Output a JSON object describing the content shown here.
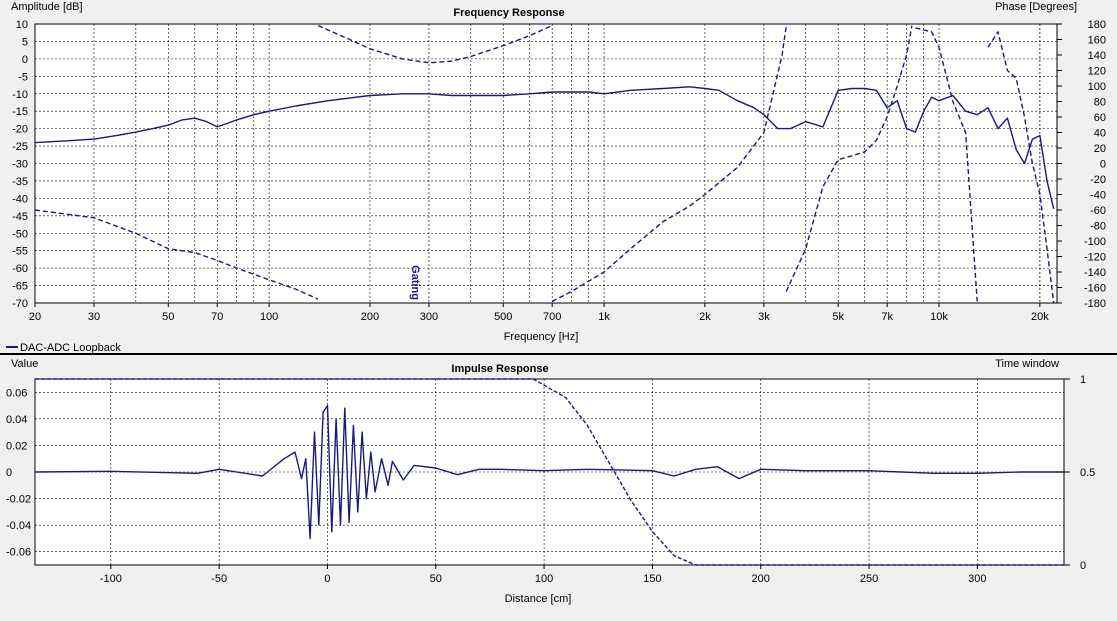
{
  "chart_data": [
    {
      "type": "line",
      "title": "Frequency Response",
      "xlabel": "Frequency [Hz]",
      "ylabel_left": "Amplitude [dB]",
      "ylabel_right": "Phase [Degrees]",
      "x_scale": "log",
      "xlim": [
        20,
        22500
      ],
      "ylim_left": [
        -70,
        10
      ],
      "ylim_right": [
        -180,
        180
      ],
      "x_ticks": [
        20,
        30,
        50,
        70,
        100,
        200,
        300,
        500,
        700,
        1000,
        2000,
        3000,
        5000,
        7000,
        10000,
        20000
      ],
      "x_tick_labels": [
        "20",
        "30",
        "50",
        "70",
        "100",
        "200",
        "300",
        "500",
        "700",
        "1k",
        "2k",
        "3k",
        "5k",
        "7k",
        "10k",
        "20k"
      ],
      "y_ticks_left": [
        10,
        5,
        0,
        -5,
        -10,
        -15,
        -20,
        -25,
        -30,
        -35,
        -40,
        -45,
        -50,
        -55,
        -60,
        -65,
        -70
      ],
      "y_ticks_right": [
        180,
        160,
        140,
        120,
        100,
        80,
        60,
        40,
        20,
        0,
        -20,
        -40,
        -60,
        -80,
        -100,
        -120,
        -140,
        -160,
        -180
      ],
      "grid": true,
      "annotation": "Gating",
      "annotation_freq": 260,
      "legend_entry": "DAC-ADC Loopback",
      "color": "#1a1a7a",
      "series": [
        {
          "name": "DAC-ADC Loopback",
          "axis": "left",
          "style": "solid",
          "x": [
            20,
            25,
            30,
            35,
            40,
            45,
            50,
            55,
            60,
            65,
            70,
            75,
            80,
            90,
            100,
            120,
            150,
            200,
            250,
            300,
            350,
            400,
            500,
            600,
            700,
            800,
            900,
            1000,
            1200,
            1500,
            1800,
            2000,
            2200,
            2500,
            2800,
            3000,
            3300,
            3600,
            4000,
            4500,
            5000,
            5500,
            6000,
            6500,
            7000,
            7500,
            8000,
            8500,
            9000,
            9500,
            10000,
            11000,
            12000,
            13000,
            14000,
            15000,
            16000,
            17000,
            18000,
            19000,
            20000,
            21000,
            22000
          ],
          "values": [
            -24,
            -23.5,
            -23,
            -22,
            -21,
            -20,
            -19,
            -17.5,
            -17,
            -18,
            -19.5,
            -18.5,
            -17.5,
            -16,
            -15,
            -13.5,
            -12,
            -10.5,
            -10,
            -10,
            -10.5,
            -10.5,
            -10.5,
            -10,
            -9.5,
            -9.5,
            -9.5,
            -10,
            -9,
            -8.5,
            -8,
            -8.5,
            -9,
            -12,
            -14,
            -16,
            -20,
            -20,
            -18,
            -19.5,
            -9,
            -8.5,
            -8.5,
            -9,
            -14,
            -12,
            -20,
            -21,
            -15,
            -11,
            -12,
            -10.5,
            -15,
            -16,
            -14,
            -20,
            -17,
            -26,
            -30,
            -23,
            -22,
            -35,
            -43
          ]
        },
        {
          "name": "Phase",
          "axis": "right",
          "style": "dashed",
          "x": [
            20,
            30,
            40,
            50,
            60,
            70,
            80,
            100,
            120,
            140
          ],
          "values": [
            -60,
            -70,
            -90,
            -110,
            -115,
            -125,
            -135,
            -150,
            -162,
            -175
          ]
        },
        {
          "name": "Phase",
          "axis": "right",
          "style": "dashed",
          "x": [
            140,
            170,
            200,
            250,
            300,
            350,
            400,
            500,
            600,
            700
          ],
          "values": [
            178,
            162,
            148,
            135,
            130,
            132,
            138,
            152,
            165,
            178
          ]
        },
        {
          "name": "Phase",
          "axis": "right",
          "style": "dashed",
          "x": [
            700,
            800,
            1000,
            1200,
            1500,
            1800,
            2000,
            2500,
            3000,
            3400,
            3500
          ],
          "values": [
            -178,
            -165,
            -140,
            -110,
            -75,
            -55,
            -40,
            -5,
            40,
            140,
            178
          ]
        },
        {
          "name": "Phase",
          "axis": "right",
          "style": "dashed",
          "x": [
            3500,
            4000,
            4500,
            5000,
            5500,
            6000,
            6500,
            7000,
            7500,
            8000,
            8300
          ],
          "values": [
            -165,
            -110,
            -30,
            5,
            10,
            15,
            30,
            60,
            100,
            140,
            178
          ]
        },
        {
          "name": "Phase",
          "axis": "right",
          "style": "dashed",
          "x": [
            8500,
            9500,
            10000,
            11000,
            12000,
            13000
          ],
          "values": [
            175,
            170,
            150,
            80,
            40,
            -178
          ]
        },
        {
          "name": "Phase",
          "axis": "right",
          "style": "dashed",
          "x": [
            14000,
            15000,
            16000,
            17000,
            18000,
            19000,
            20000,
            21000,
            22000
          ],
          "values": [
            150,
            170,
            120,
            110,
            60,
            0,
            -40,
            -110,
            -180
          ]
        }
      ]
    },
    {
      "type": "line",
      "title": "Impulse Response",
      "xlabel": "Distance [cm]",
      "ylabel_left": "Value",
      "ylabel_right": "Time window",
      "xlim": [
        -135,
        340
      ],
      "ylim_left": [
        -0.07,
        0.07
      ],
      "ylim_right": [
        0,
        1
      ],
      "x_ticks": [
        -100,
        -50,
        0,
        50,
        100,
        150,
        200,
        250,
        300
      ],
      "y_ticks_left": [
        0.06,
        0.04,
        0.02,
        0,
        -0.02,
        -0.04,
        -0.06
      ],
      "y_ticks_left_labels": [
        "0.06",
        "0.04",
        "0.02",
        "0",
        "-0.02",
        "-0.04",
        "-0.06"
      ],
      "y_ticks_right": [
        1,
        0.5,
        0
      ],
      "grid": true,
      "color": "#1a1a7a",
      "series": [
        {
          "name": "Impulse",
          "axis": "left",
          "style": "solid",
          "x": [
            -135,
            -100,
            -60,
            -50,
            -30,
            -20,
            -15,
            -12,
            -10,
            -8,
            -6,
            -4,
            -2,
            0,
            2,
            4,
            6,
            8,
            10,
            12,
            14,
            16,
            18,
            20,
            22,
            25,
            28,
            30,
            35,
            40,
            50,
            60,
            70,
            80,
            100,
            120,
            150,
            160,
            170,
            180,
            190,
            200,
            220,
            250,
            280,
            300,
            320,
            340
          ],
          "values": [
            0,
            0.0005,
            -0.001,
            0.002,
            -0.003,
            0.01,
            0.015,
            -0.005,
            0.01,
            -0.05,
            0.03,
            -0.04,
            0.045,
            0.05,
            -0.045,
            0.04,
            -0.04,
            0.048,
            -0.038,
            0.035,
            -0.03,
            0.03,
            -0.02,
            0.015,
            -0.015,
            0.01,
            -0.01,
            0.008,
            -0.006,
            0.005,
            0.003,
            -0.002,
            0.002,
            0.002,
            0.001,
            0.002,
            0.001,
            -0.003,
            0.002,
            0.004,
            -0.005,
            0.002,
            0.001,
            0.001,
            -0.001,
            -0.001,
            0,
            0
          ]
        },
        {
          "name": "Time window",
          "axis": "right",
          "style": "dashed",
          "x": [
            -135,
            -1,
            0,
            95,
            110,
            120,
            130,
            140,
            150,
            160,
            170,
            340
          ],
          "values": [
            1,
            1,
            1,
            1,
            0.9,
            0.75,
            0.55,
            0.35,
            0.18,
            0.05,
            0,
            0
          ]
        }
      ]
    }
  ]
}
